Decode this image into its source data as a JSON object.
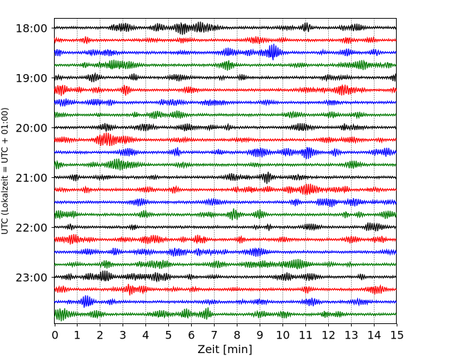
{
  "chart_data": {
    "type": "line",
    "title": "",
    "xlabel": "Zeit  [min]",
    "ylabel": "UTC (Lokalzeit = UTC + 01:00)",
    "xlim": [
      0,
      15
    ],
    "x_ticks": [
      "0",
      "1",
      "2",
      "3",
      "4",
      "5",
      "6",
      "7",
      "8",
      "9",
      "10",
      "11",
      "12",
      "13",
      "14",
      "15"
    ],
    "y_ticks": [
      "18:00",
      "19:00",
      "20:00",
      "21:00",
      "22:00",
      "23:00"
    ],
    "grid": "vertical dotted",
    "trace_interval_min": 15,
    "trace_colors": [
      "#000000",
      "#ff0000",
      "#0000ff",
      "#007a00"
    ],
    "trace_start_times": [
      "18:00",
      "18:15",
      "18:30",
      "18:45",
      "19:00",
      "19:15",
      "19:30",
      "19:45",
      "20:00",
      "20:15",
      "20:30",
      "20:45",
      "21:00",
      "21:15",
      "21:30",
      "21:45",
      "22:00",
      "22:15",
      "22:30",
      "22:45",
      "23:00",
      "23:15",
      "23:30",
      "23:45"
    ]
  }
}
